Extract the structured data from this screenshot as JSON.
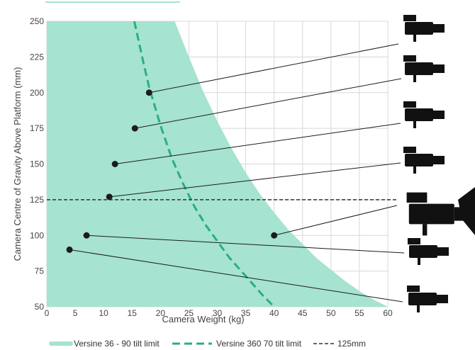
{
  "chart_data": {
    "type": "area",
    "xlabel": "Camera Weight (kg)",
    "ylabel": "Camera Centre of Gravity Above Platform (mm)",
    "xlim": [
      0,
      60
    ],
    "ylim": [
      50,
      250
    ],
    "x_ticks": [
      "0",
      "5",
      "10",
      "15",
      "20",
      "25",
      "30",
      "35",
      "40",
      "45",
      "50",
      "55",
      "60"
    ],
    "y_ticks": [
      "50",
      "75",
      "100",
      "125",
      "150",
      "175",
      "200",
      "225",
      "250"
    ],
    "grid": true,
    "colors": {
      "area": "#a6e3d1",
      "dashed_curve": "#2aae80",
      "reference_line": "#333333",
      "points": "#1c1c1c",
      "grid": "#d8d8d8"
    },
    "series": [
      {
        "name": "Versine 36 - 90 tilt limit",
        "style": "filled-area",
        "x": [
          0,
          22.5,
          25,
          27.5,
          30,
          32.5,
          35,
          37.5,
          40,
          42.5,
          45,
          47.5,
          50,
          52.5,
          55,
          57.5,
          60
        ],
        "y": [
          250,
          250,
          225,
          201,
          180,
          161,
          144,
          129,
          116,
          104,
          94,
          84,
          76,
          68,
          61,
          55,
          50
        ]
      },
      {
        "name": "Versine 360 70 tilt limit",
        "style": "dashed-line",
        "x": [
          15.4,
          17,
          18,
          20,
          22,
          24,
          25,
          26,
          28,
          30,
          32,
          34,
          36,
          38,
          40
        ],
        "y": [
          250,
          221,
          204,
          177,
          154,
          136,
          128,
          120,
          107,
          96,
          85,
          76,
          67,
          58,
          50
        ]
      },
      {
        "name": "125mm",
        "style": "dashed-reference",
        "x": [
          0,
          60
        ],
        "y": [
          125,
          125
        ]
      }
    ],
    "points": [
      {
        "x": 18,
        "y": 200
      },
      {
        "x": 15.5,
        "y": 175
      },
      {
        "x": 12,
        "y": 150
      },
      {
        "x": 11,
        "y": 127
      },
      {
        "x": 40,
        "y": 100
      },
      {
        "x": 7,
        "y": 100
      },
      {
        "x": 4,
        "y": 90
      }
    ],
    "legend_position": "bottom"
  },
  "camera_icons": [
    "camera-icon",
    "camera-icon",
    "camera-icon",
    "camera-icon",
    "camera-icon",
    "camera-icon",
    "camera-icon"
  ]
}
